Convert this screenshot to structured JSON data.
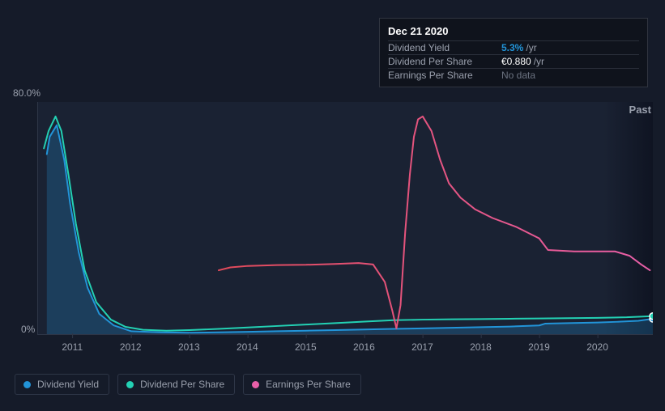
{
  "tooltip": {
    "date": "Dec 21 2020",
    "rows": [
      {
        "label": "Dividend Yield",
        "value": "5.3%",
        "unit": "/yr",
        "style": "highlight"
      },
      {
        "label": "Dividend Per Share",
        "value": "€0.880",
        "unit": "/yr",
        "style": "normal",
        "color": "#ffffff"
      },
      {
        "label": "Earnings Per Share",
        "value": "No data",
        "unit": "",
        "style": "muted"
      }
    ]
  },
  "chart": {
    "type": "line",
    "background_color": "#1a2233",
    "page_background": "#151b29",
    "grid_color": "#2e3647",
    "y_axis": {
      "min": 0,
      "max": 80,
      "labels": [
        "0%",
        "80.0%"
      ],
      "label_color": "#9aa0ad",
      "label_fontsize": 12
    },
    "x_axis": {
      "min": 2010.4,
      "max": 2020.95,
      "ticks": [
        2011,
        2012,
        2013,
        2014,
        2015,
        2016,
        2017,
        2018,
        2019,
        2020
      ],
      "label_color": "#9aa0ad",
      "label_fontsize": 12
    },
    "past_label": "Past",
    "series": [
      {
        "name": "Dividend Yield",
        "color": "#2294d8",
        "stroke_width": 2,
        "fill": "rgba(34,148,216,0.25)",
        "points": [
          [
            2010.55,
            62
          ],
          [
            2010.6,
            68
          ],
          [
            2010.72,
            72
          ],
          [
            2010.85,
            60
          ],
          [
            2010.95,
            45
          ],
          [
            2011.1,
            28
          ],
          [
            2011.25,
            16
          ],
          [
            2011.45,
            7
          ],
          [
            2011.7,
            3
          ],
          [
            2012.0,
            1
          ],
          [
            2012.5,
            0.6
          ],
          [
            2013.0,
            0.5
          ],
          [
            2013.5,
            0.6
          ],
          [
            2014.0,
            0.8
          ],
          [
            2014.5,
            1.0
          ],
          [
            2015.0,
            1.2
          ],
          [
            2015.5,
            1.4
          ],
          [
            2016.0,
            1.6
          ],
          [
            2016.5,
            1.8
          ],
          [
            2017.0,
            2.0
          ],
          [
            2017.5,
            2.2
          ],
          [
            2018.0,
            2.4
          ],
          [
            2018.5,
            2.6
          ],
          [
            2019.0,
            3.0
          ],
          [
            2019.1,
            3.6
          ],
          [
            2019.5,
            3.8
          ],
          [
            2020.0,
            4.0
          ],
          [
            2020.4,
            4.3
          ],
          [
            2020.7,
            4.6
          ],
          [
            2020.95,
            5.3
          ]
        ],
        "end_marker": {
          "x": 2020.95,
          "y": 5.3,
          "radius": 4,
          "fill": "#2294d8",
          "stroke": "#ffffff"
        }
      },
      {
        "name": "Dividend Per Share",
        "color": "#23d1b4",
        "stroke_width": 2,
        "points": [
          [
            2010.5,
            64
          ],
          [
            2010.58,
            70
          ],
          [
            2010.7,
            75
          ],
          [
            2010.8,
            70
          ],
          [
            2010.92,
            55
          ],
          [
            2011.05,
            38
          ],
          [
            2011.2,
            22
          ],
          [
            2011.4,
            11
          ],
          [
            2011.65,
            5
          ],
          [
            2011.9,
            2.5
          ],
          [
            2012.2,
            1.5
          ],
          [
            2012.6,
            1.2
          ],
          [
            2013.0,
            1.4
          ],
          [
            2013.5,
            1.8
          ],
          [
            2014.0,
            2.3
          ],
          [
            2014.5,
            2.8
          ],
          [
            2015.0,
            3.3
          ],
          [
            2015.5,
            3.8
          ],
          [
            2016.0,
            4.3
          ],
          [
            2016.5,
            4.8
          ],
          [
            2017.0,
            5.0
          ],
          [
            2017.5,
            5.1
          ],
          [
            2018.0,
            5.2
          ],
          [
            2018.5,
            5.3
          ],
          [
            2019.0,
            5.4
          ],
          [
            2019.5,
            5.5
          ],
          [
            2020.0,
            5.6
          ],
          [
            2020.5,
            5.8
          ],
          [
            2020.95,
            6.2
          ]
        ],
        "end_marker": {
          "x": 2020.95,
          "y": 6.2,
          "radius": 4,
          "fill": "#23d1b4",
          "stroke": "#ffffff"
        }
      },
      {
        "name": "Earnings Per Share",
        "color_start": "#e14a5a",
        "color_end": "#e85fa8",
        "gradient": true,
        "stroke_width": 2,
        "points": [
          [
            2013.5,
            22
          ],
          [
            2013.7,
            23
          ],
          [
            2014.0,
            23.5
          ],
          [
            2014.5,
            23.8
          ],
          [
            2015.0,
            23.9
          ],
          [
            2015.5,
            24.2
          ],
          [
            2015.9,
            24.5
          ],
          [
            2016.15,
            24.0
          ],
          [
            2016.35,
            18
          ],
          [
            2016.48,
            8
          ],
          [
            2016.55,
            2
          ],
          [
            2016.62,
            10
          ],
          [
            2016.7,
            35
          ],
          [
            2016.78,
            55
          ],
          [
            2016.85,
            68
          ],
          [
            2016.92,
            74
          ],
          [
            2017.0,
            75
          ],
          [
            2017.15,
            70
          ],
          [
            2017.3,
            60
          ],
          [
            2017.45,
            52
          ],
          [
            2017.65,
            47
          ],
          [
            2017.9,
            43
          ],
          [
            2018.2,
            40
          ],
          [
            2018.6,
            37
          ],
          [
            2019.0,
            33
          ],
          [
            2019.15,
            29
          ],
          [
            2019.6,
            28.5
          ],
          [
            2020.0,
            28.5
          ],
          [
            2020.3,
            28.5
          ],
          [
            2020.55,
            27
          ],
          [
            2020.75,
            24
          ],
          [
            2020.9,
            22
          ]
        ]
      }
    ]
  },
  "legend": {
    "items": [
      {
        "label": "Dividend Yield",
        "color": "#2294d8"
      },
      {
        "label": "Dividend Per Share",
        "color": "#23d1b4"
      },
      {
        "label": "Earnings Per Share",
        "color": "#e85fa8"
      }
    ],
    "text_color": "#9aa0ad",
    "border_color": "#2e3647",
    "fontsize": 12
  }
}
